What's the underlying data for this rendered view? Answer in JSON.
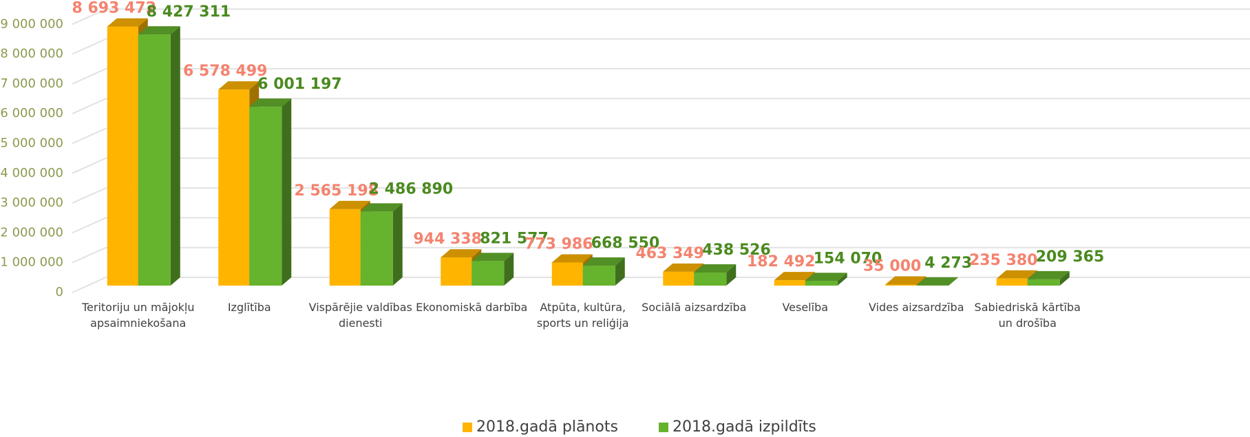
{
  "chart_data": {
    "type": "bar3d",
    "categories": [
      "Teritoriju un mājokļu apsaimniekošana",
      "Izglītība",
      "Vispārējie valdības dienesti",
      "Ekonomiskā darbība",
      "Atpūta, kultūra, sports un reliģija",
      "Sociālā aizsardzība",
      "Veselība",
      "Vides aizsardzība",
      "Sabiedriskā kārtība un drošība"
    ],
    "series": [
      {
        "name": "2018.gadā plānots",
        "color": "#ffb400",
        "label_color": "#f4836f",
        "values": [
          8693472,
          6578499,
          2565198,
          944338,
          773986,
          463349,
          182492,
          35000,
          235380
        ],
        "value_labels": [
          "8 693 472",
          "6 578 499",
          "2 565 198",
          "944 338",
          "773 986",
          "463 349",
          "182 492",
          "35 000",
          "235 380"
        ]
      },
      {
        "name": "2018.gadā izpildīts",
        "color": "#66b32e",
        "label_color": "#4a8a1f",
        "values": [
          8427311,
          6001197,
          2486890,
          821577,
          668550,
          438526,
          154070,
          4273,
          209365
        ],
        "value_labels": [
          "8 427 311",
          "6 001 197",
          "2 486 890",
          "821 577",
          "668 550",
          "438 526",
          "154 070",
          "4 273",
          "209 365"
        ]
      }
    ],
    "ylim": [
      0,
      9700000
    ],
    "yticks": [
      0,
      {
        "value": 1000000,
        "label": "1 000 000"
      },
      {
        "value": 2000000,
        "label": "2 000 000"
      },
      {
        "value": 3000000,
        "label": "3 000 000"
      },
      {
        "value": 4000000,
        "label": "4 000 000"
      },
      {
        "value": 5000000,
        "label": "5 000 000"
      },
      {
        "value": 6000000,
        "label": "6 000 000"
      },
      {
        "value": 7000000,
        "label": "7 000 000"
      },
      {
        "value": 8000000,
        "label": "8 000 000"
      },
      {
        "value": 9000000,
        "label": "9 000 000"
      }
    ],
    "grid": true,
    "legend": "bottom"
  }
}
